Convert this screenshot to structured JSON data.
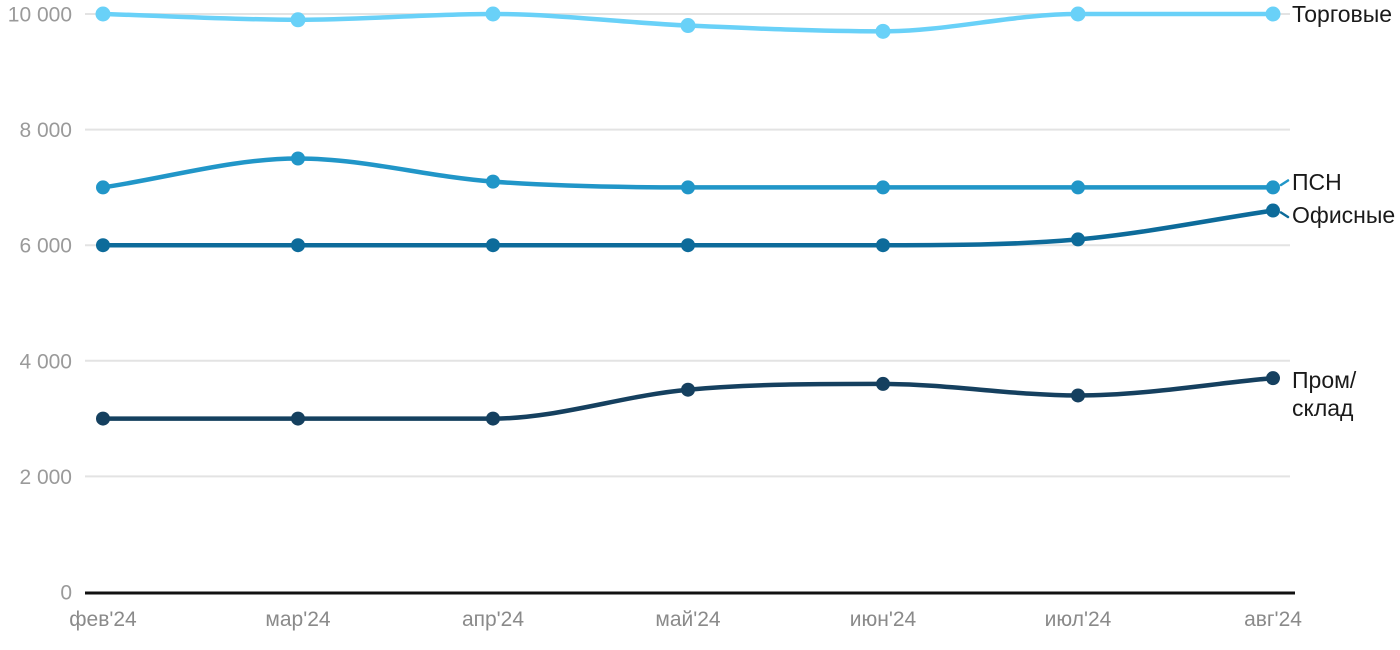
{
  "chart_data": {
    "type": "line",
    "title": "",
    "xlabel": "",
    "ylabel": "",
    "categories": [
      "фев'24",
      "мар'24",
      "апр'24",
      "май'24",
      "июн'24",
      "июл'24",
      "авг'24"
    ],
    "series": [
      {
        "name": "Торговые",
        "label_lines": [
          "Торговые"
        ],
        "color": "#69d1f8",
        "values": [
          10000,
          9900,
          10000,
          9800,
          9700,
          10000,
          10000
        ]
      },
      {
        "name": "ПСН",
        "label_lines": [
          "ПСН"
        ],
        "color": "#2196c8",
        "values": [
          7000,
          7500,
          7100,
          7000,
          7000,
          7000,
          7000
        ]
      },
      {
        "name": "Офисные",
        "label_lines": [
          "Офисные"
        ],
        "color": "#0d6b9a",
        "values": [
          6000,
          6000,
          6000,
          6000,
          6000,
          6100,
          6600
        ]
      },
      {
        "name": "Пром/склад",
        "label_lines": [
          "Пром/",
          "склад"
        ],
        "color": "#15405f",
        "values": [
          3000,
          3000,
          3000,
          3500,
          3600,
          3400,
          3700
        ]
      }
    ],
    "ylim": [
      0,
      10000
    ],
    "yticks": [
      {
        "value": 0,
        "label": "0"
      },
      {
        "value": 2000,
        "label": "2 000"
      },
      {
        "value": 4000,
        "label": "4 000"
      },
      {
        "value": 6000,
        "label": "6 000"
      },
      {
        "value": 8000,
        "label": "8 000"
      },
      {
        "value": 10000,
        "label": "10 000"
      }
    ],
    "grid": "horizontal",
    "legend_position": "right-inline",
    "colors": {
      "grid": "#e3e3e3",
      "axis": "#111111",
      "ytick_text": "#9a9a9a",
      "xtick_text": "#8a8a8a",
      "series_label_text": "#1a1a1a",
      "background": "#ffffff"
    }
  }
}
